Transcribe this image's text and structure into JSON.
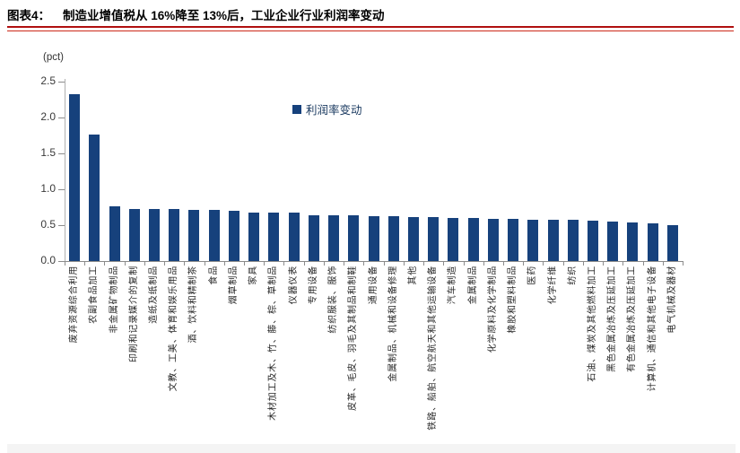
{
  "header": {
    "figure_label": "图表4：",
    "title": "制造业增值税从 16%降至 13%后，工业企业行业利润率变动"
  },
  "accent_colors": {
    "rule_red": "#b01010",
    "bar_navy": "#16417c"
  },
  "chart_data": {
    "type": "bar",
    "title": "制造业增值税从 16%降至 13%后，工业企业行业利润率变动",
    "unit_label": "(pct)",
    "legend": "利润率变动",
    "legend_swatch_icon": "square-swatch-icon",
    "xlabel": "",
    "ylabel": "(pct)",
    "ylim": [
      0,
      2.5
    ],
    "yticks": [
      0.0,
      0.5,
      1.0,
      1.5,
      2.0,
      2.5
    ],
    "grid": false,
    "legend_position": "upper-center",
    "bar_color": "#16417c",
    "categories": [
      "废弃资源综合利用",
      "农副食品加工",
      "非金属矿物制品",
      "印刷和记录媒介的复制",
      "造纸及纸制品",
      "文教、工美、体育和娱乐用品",
      "酒、饮料和精制茶",
      "食品",
      "烟草制品",
      "家具",
      "木材加工及木、竹、藤、棕、草制品",
      "仪器仪表",
      "专用设备",
      "纺织服装、服饰",
      "皮革、毛皮、羽毛及其制品和制鞋",
      "通用设备",
      "金属制品、机械和设备修理",
      "其他",
      "铁路、船舶、航空航天和其他运输设备",
      "汽车制造",
      "金属制品",
      "化学原料及化学制品",
      "橡胶和塑料制品",
      "医药",
      "化学纤维",
      "纺织",
      "石油、煤炭及其他燃料加工",
      "黑色金属冶炼及压延加工",
      "有色金属冶炼及压延加工",
      "计算机、通信和其他电子设备",
      "电气机械及器材"
    ],
    "values": [
      2.33,
      1.76,
      0.76,
      0.72,
      0.72,
      0.72,
      0.71,
      0.71,
      0.7,
      0.68,
      0.68,
      0.67,
      0.64,
      0.64,
      0.64,
      0.62,
      0.62,
      0.61,
      0.61,
      0.6,
      0.6,
      0.59,
      0.59,
      0.58,
      0.58,
      0.57,
      0.56,
      0.55,
      0.54,
      0.52,
      0.5
    ]
  }
}
